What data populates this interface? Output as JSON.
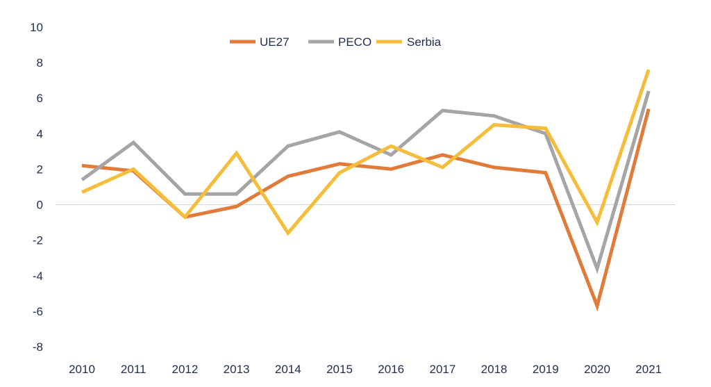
{
  "chart_data": {
    "type": "line",
    "title": "",
    "xlabel": "",
    "ylabel": "",
    "x": [
      "2010",
      "2011",
      "2012",
      "2013",
      "2014",
      "2015",
      "2016",
      "2017",
      "2018",
      "2019",
      "2020",
      "2021"
    ],
    "ylim": [
      -8,
      10
    ],
    "yticks": [
      "10",
      "8",
      "6",
      "4",
      "2",
      "0",
      "-2",
      "-4",
      "-6",
      "-8"
    ],
    "grid": false,
    "zero_line": true,
    "legend_position": "top",
    "series": [
      {
        "name": "UE27",
        "color": "#e07b39",
        "values": [
          2.2,
          1.9,
          -0.7,
          -0.1,
          1.6,
          2.3,
          2.0,
          2.8,
          2.1,
          1.8,
          -5.7,
          5.4
        ]
      },
      {
        "name": "PECO",
        "color": "#a5a5a5",
        "values": [
          1.4,
          3.5,
          0.6,
          0.6,
          3.3,
          4.1,
          2.8,
          5.3,
          5.0,
          4.0,
          -3.6,
          6.4
        ]
      },
      {
        "name": "Serbia",
        "color": "#f5bd3b",
        "values": [
          0.7,
          2.0,
          -0.7,
          2.9,
          -1.6,
          1.8,
          3.3,
          2.1,
          4.5,
          4.3,
          -1.0,
          7.6
        ]
      }
    ]
  }
}
